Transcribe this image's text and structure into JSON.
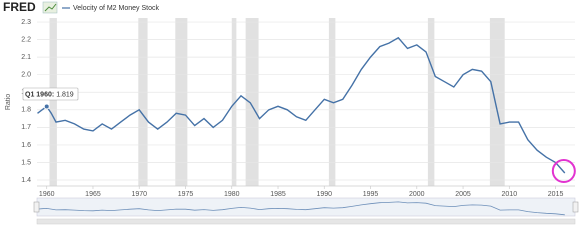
{
  "logo": "FRED",
  "chart_data": {
    "type": "line",
    "y_label": "Ratio",
    "x": [
      1959.0,
      1959.5,
      1960.0,
      1960.5,
      1961.0,
      1962.0,
      1963.0,
      1964.0,
      1965.0,
      1966.0,
      1967.0,
      1968.0,
      1969.0,
      1970.0,
      1971.0,
      1972.0,
      1973.0,
      1974.0,
      1975.0,
      1976.0,
      1977.0,
      1978.0,
      1979.0,
      1980.0,
      1981.0,
      1982.0,
      1983.0,
      1984.0,
      1985.0,
      1986.0,
      1987.0,
      1988.0,
      1989.0,
      1990.0,
      1991.0,
      1992.0,
      1993.0,
      1994.0,
      1995.0,
      1996.0,
      1997.0,
      1998.0,
      1999.0,
      2000.0,
      2001.0,
      2002.0,
      2003.0,
      2004.0,
      2005.0,
      2006.0,
      2007.0,
      2008.0,
      2009.0,
      2010.0,
      2011.0,
      2012.0,
      2013.0,
      2014.0,
      2015.0,
      2016.0
    ],
    "series": [
      {
        "name": "Velocity of M2 Money Stock",
        "color": "#4572a7",
        "values": [
          1.78,
          1.8,
          1.819,
          1.78,
          1.73,
          1.74,
          1.72,
          1.69,
          1.68,
          1.72,
          1.69,
          1.73,
          1.77,
          1.8,
          1.73,
          1.69,
          1.73,
          1.78,
          1.77,
          1.71,
          1.75,
          1.7,
          1.74,
          1.82,
          1.88,
          1.84,
          1.75,
          1.8,
          1.82,
          1.8,
          1.76,
          1.74,
          1.8,
          1.86,
          1.84,
          1.86,
          1.94,
          2.03,
          2.1,
          2.16,
          2.18,
          2.21,
          2.15,
          2.17,
          2.13,
          1.99,
          1.96,
          1.93,
          2.0,
          2.03,
          2.02,
          1.96,
          1.72,
          1.73,
          1.73,
          1.63,
          1.57,
          1.53,
          1.5,
          1.44
        ]
      }
    ],
    "recessions": [
      [
        1960.3,
        1961.1
      ],
      [
        1969.9,
        1970.9
      ],
      [
        1973.9,
        1975.2
      ],
      [
        1980.0,
        1980.5
      ],
      [
        1981.5,
        1982.9
      ],
      [
        1990.5,
        1991.2
      ],
      [
        2001.2,
        2001.9
      ],
      [
        2007.9,
        2009.5
      ]
    ],
    "tooltip": {
      "label": "Q1 1960:",
      "value": 1.819
    },
    "xlim": [
      1958.95,
      2017.1
    ],
    "ylim": [
      1.366,
      2.323
    ],
    "xticks": [
      1960,
      1965,
      1970,
      1975,
      1980,
      1985,
      1990,
      1995,
      2000,
      2005,
      2010,
      2015
    ],
    "yticks": [
      1.4,
      1.5,
      1.6,
      1.7,
      1.8,
      1.9,
      {
        "value": 2,
        "label": "2.0"
      },
      2.1,
      2.2,
      2.3
    ],
    "grid": true,
    "recession_color": "#e1e1e1"
  }
}
